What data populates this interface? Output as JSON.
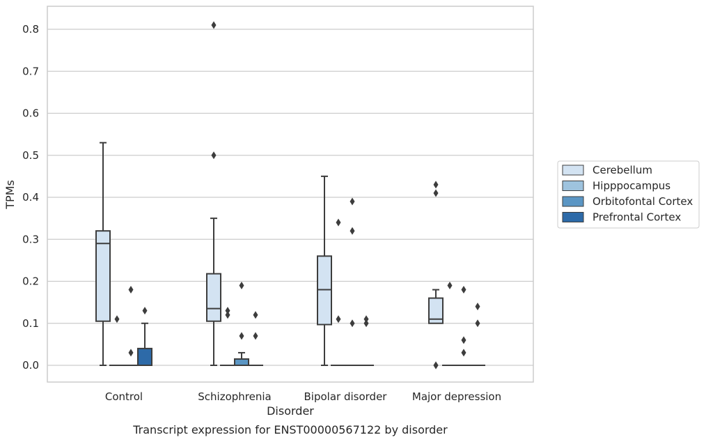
{
  "chart_data": {
    "type": "box",
    "title": "Transcript expression for ENST00000567122 by disorder",
    "xlabel": "Disorder",
    "ylabel": "TPMs",
    "ylim": [
      -0.04,
      0.85
    ],
    "yticks": [
      0.0,
      0.1,
      0.2,
      0.3,
      0.4,
      0.5,
      0.6,
      0.7,
      0.8
    ],
    "ytick_labels": [
      "0.0",
      "0.1",
      "0.2",
      "0.3",
      "0.4",
      "0.5",
      "0.6",
      "0.7",
      "0.8"
    ],
    "grid": true,
    "legend_position": "right",
    "categories": [
      "Control",
      "Schizophrenia",
      "Bipolar disorder",
      "Major depression"
    ],
    "series": [
      {
        "name": "Cerebellum",
        "color": "#d3e3f2",
        "boxes": [
          {
            "q1": 0.105,
            "median": 0.29,
            "q3": 0.32,
            "whislo": 0.0,
            "whishi": 0.53,
            "fliers": []
          },
          {
            "q1": 0.105,
            "median": 0.135,
            "q3": 0.218,
            "whislo": 0.0,
            "whishi": 0.35,
            "fliers": [
              0.5,
              0.81
            ]
          },
          {
            "q1": 0.097,
            "median": 0.18,
            "q3": 0.26,
            "whislo": 0.0,
            "whishi": 0.45,
            "fliers": []
          },
          {
            "q1": 0.1,
            "median": 0.11,
            "q3": 0.16,
            "whislo": 0.1,
            "whishi": 0.18,
            "fliers": [
              0.0,
              0.0,
              0.41,
              0.43
            ]
          }
        ]
      },
      {
        "name": "Hipppocampus",
        "color": "#9ec3de",
        "boxes": [
          {
            "q1": 0.0,
            "median": 0.0,
            "q3": 0.0,
            "whislo": 0.0,
            "whishi": 0.0,
            "fliers": [
              0.11
            ]
          },
          {
            "q1": 0.0,
            "median": 0.0,
            "q3": 0.0,
            "whislo": 0.0,
            "whishi": 0.0,
            "fliers": [
              0.12,
              0.13
            ]
          },
          {
            "q1": 0.0,
            "median": 0.0,
            "q3": 0.0,
            "whislo": 0.0,
            "whishi": 0.0,
            "fliers": [
              0.11,
              0.34
            ]
          },
          {
            "q1": 0.0,
            "median": 0.0,
            "q3": 0.0,
            "whislo": 0.0,
            "whishi": 0.0,
            "fliers": [
              0.19
            ]
          }
        ]
      },
      {
        "name": "Orbitofontal Cortex",
        "color": "#5b96c4",
        "boxes": [
          {
            "q1": 0.0,
            "median": 0.0,
            "q3": 0.0,
            "whislo": 0.0,
            "whishi": 0.0,
            "fliers": [
              0.03,
              0.18
            ]
          },
          {
            "q1": 0.0,
            "median": 0.0,
            "q3": 0.015,
            "whislo": 0.0,
            "whishi": 0.03,
            "fliers": [
              0.07,
              0.19
            ]
          },
          {
            "q1": 0.0,
            "median": 0.0,
            "q3": 0.0,
            "whislo": 0.0,
            "whishi": 0.0,
            "fliers": [
              0.1,
              0.32,
              0.39
            ]
          },
          {
            "q1": 0.0,
            "median": 0.0,
            "q3": 0.0,
            "whislo": 0.0,
            "whishi": 0.0,
            "fliers": [
              0.03,
              0.06,
              0.18
            ]
          }
        ]
      },
      {
        "name": "Prefrontal Cortex",
        "color": "#2d6aa8",
        "boxes": [
          {
            "q1": 0.0,
            "median": 0.0,
            "q3": 0.04,
            "whislo": 0.0,
            "whishi": 0.1,
            "fliers": [
              0.13
            ]
          },
          {
            "q1": 0.0,
            "median": 0.0,
            "q3": 0.0,
            "whislo": 0.0,
            "whishi": 0.0,
            "fliers": [
              0.07,
              0.12
            ]
          },
          {
            "q1": 0.0,
            "median": 0.0,
            "q3": 0.0,
            "whislo": 0.0,
            "whishi": 0.0,
            "fliers": [
              0.1,
              0.11
            ]
          },
          {
            "q1": 0.0,
            "median": 0.0,
            "q3": 0.0,
            "whislo": 0.0,
            "whishi": 0.0,
            "fliers": [
              0.1,
              0.14
            ]
          }
        ]
      }
    ]
  }
}
